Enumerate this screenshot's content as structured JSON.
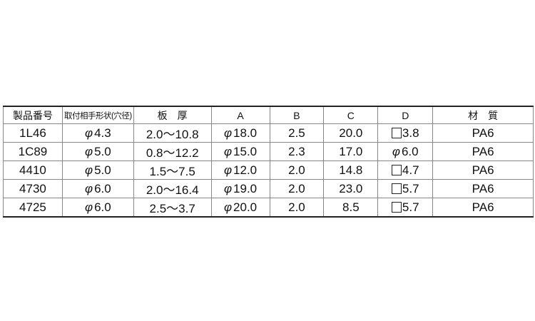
{
  "table": {
    "headers": [
      "製品番号",
      "取付相手形状(穴径)",
      "板　厚",
      "A",
      "B",
      "C",
      "D",
      "材　質"
    ],
    "rows": [
      {
        "part": "1L46",
        "hole_symbol": "φ",
        "hole": "4.3",
        "thickness": "2.0～10.8",
        "a_symbol": "φ",
        "a": "18.0",
        "b": "2.5",
        "c": "20.0",
        "d_symbol": "square",
        "d": "3.8",
        "material": "PA6"
      },
      {
        "part": "1C89",
        "hole_symbol": "φ",
        "hole": "5.0",
        "thickness": "0.8～12.2",
        "a_symbol": "φ",
        "a": "15.0",
        "b": "2.3",
        "c": "17.0",
        "d_symbol": "φ",
        "d": "6.0",
        "material": "PA6"
      },
      {
        "part": "4410",
        "hole_symbol": "φ",
        "hole": "5.0",
        "thickness": "1.5～7.5",
        "a_symbol": "φ",
        "a": "12.0",
        "b": "2.0",
        "c": "14.8",
        "d_symbol": "square",
        "d": "4.7",
        "material": "PA6"
      },
      {
        "part": "4730",
        "hole_symbol": "φ",
        "hole": "6.0",
        "thickness": "2.0～16.4",
        "a_symbol": "φ",
        "a": "19.0",
        "b": "2.0",
        "c": "23.0",
        "d_symbol": "square",
        "d": "5.7",
        "material": "PA6"
      },
      {
        "part": "4725",
        "hole_symbol": "φ",
        "hole": "6.0",
        "thickness": "2.5～3.7",
        "a_symbol": "φ",
        "a": "20.0",
        "b": "2.0",
        "c": "8.5",
        "d_symbol": "square",
        "d": "5.7",
        "material": "PA6"
      }
    ]
  }
}
